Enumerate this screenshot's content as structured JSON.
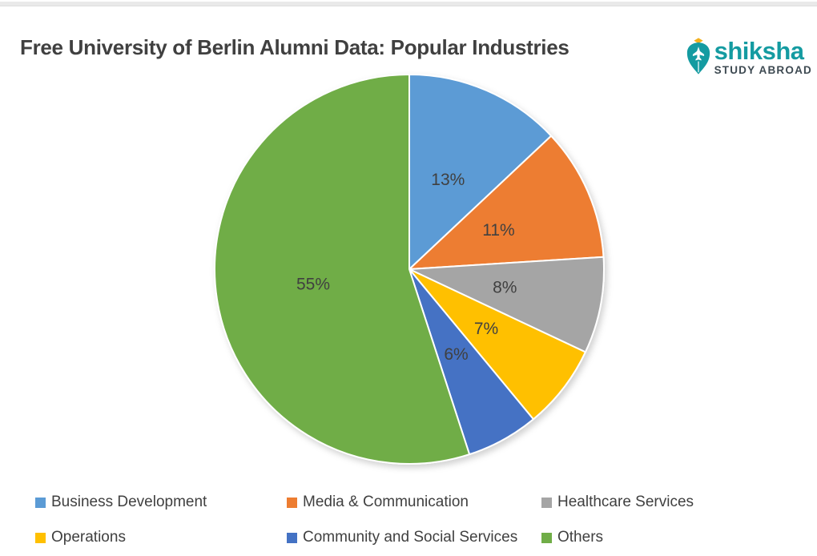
{
  "header": {
    "title": "Free University of Berlin Alumni Data: Popular Industries"
  },
  "logo": {
    "brand": "shiksha",
    "tagline": "STUDY ABROAD",
    "brand_color": "#149BA1",
    "tagline_color": "#3E4A52",
    "icon": "pen-nib-with-airplane-icon",
    "ornament_color": "#F2B01E"
  },
  "chart_data": {
    "type": "pie",
    "title": "Free University of Berlin Alumni Data: Popular Industries",
    "direction": "clockwise",
    "start_angle_deg": 0,
    "label_format": "percent",
    "label_color": "#404040",
    "slice_border_color": "#ffffff",
    "legend_position": "bottom",
    "segments": [
      {
        "label": "Business Development",
        "value_pct": 13,
        "color": "#5B9BD5"
      },
      {
        "label": "Media & Communication",
        "value_pct": 11,
        "color": "#ED7D31"
      },
      {
        "label": "Healthcare Services",
        "value_pct": 8,
        "color": "#A5A5A5"
      },
      {
        "label": "Operations",
        "value_pct": 7,
        "color": "#FFC000"
      },
      {
        "label": "Community and Social Services",
        "value_pct": 6,
        "color": "#4472C4"
      },
      {
        "label": "Others",
        "value_pct": 55,
        "color": "#70AD47"
      }
    ]
  }
}
